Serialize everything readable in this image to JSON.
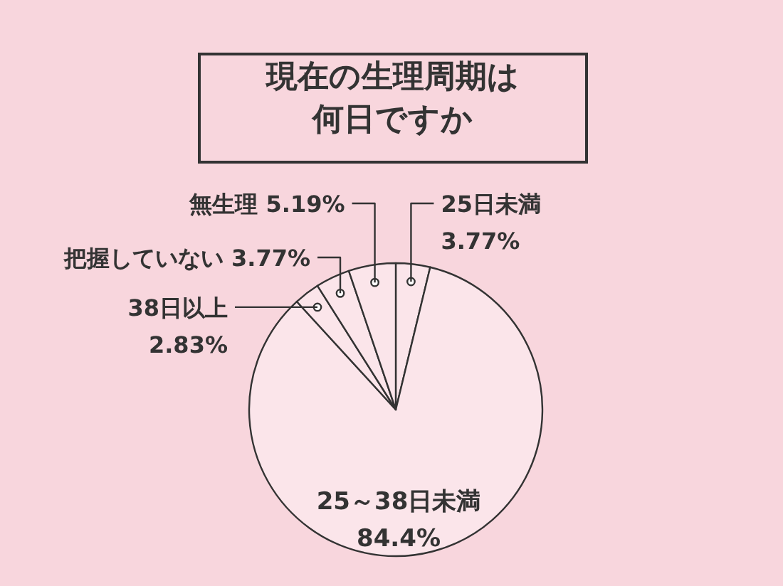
{
  "chart_data": {
    "type": "pie",
    "title": "現在の生理周期は何日ですか",
    "categories": [
      "25日未満",
      "25～38日未満",
      "38日以上",
      "把握していない",
      "無生理"
    ],
    "values": [
      3.77,
      84.4,
      2.83,
      3.77,
      5.19
    ],
    "value_labels": [
      "3.77%",
      "84.4%",
      "2.83%",
      "3.77%",
      "5.19%"
    ],
    "colors": [
      "#fbe5ea",
      "#fbe5ea",
      "#fbe5ea",
      "#fbe5ea",
      "#fbe5ea"
    ]
  }
}
